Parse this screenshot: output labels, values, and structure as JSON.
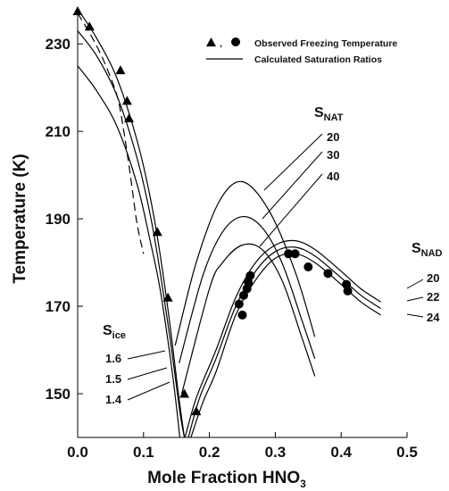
{
  "chart_data": {
    "type": "line",
    "xlabel": "Mole Fraction HNO",
    "xlabel_sub": "3",
    "ylabel": "Temperature (K)",
    "xlim": [
      0.0,
      0.5
    ],
    "ylim": [
      140,
      238
    ],
    "x_ticks": [
      "0.0",
      "0.1",
      "0.2",
      "0.3",
      "0.4",
      "0.5"
    ],
    "y_ticks": [
      "150",
      "170",
      "190",
      "210",
      "230"
    ],
    "legend": {
      "position": "top-right",
      "marker_sep": ",",
      "observed_label": "Observed Freezing Temperature",
      "calculated_label": "Calculated Saturation Ratios"
    },
    "groups": [
      {
        "main": "S",
        "sub": "ice",
        "labels": [
          "1.6",
          "1.5",
          "1.4"
        ]
      },
      {
        "main": "S",
        "sub": "NAT",
        "labels": [
          "20",
          "30",
          "40"
        ]
      },
      {
        "main": "S",
        "sub": "NAD",
        "labels": [
          "20",
          "22",
          "24"
        ]
      }
    ],
    "series": [
      {
        "group": "ice",
        "label": "1.6",
        "style": "solid",
        "points": [
          [
            0.0,
            238
          ],
          [
            0.03,
            231
          ],
          [
            0.06,
            222
          ],
          [
            0.09,
            208
          ],
          [
            0.11,
            195
          ],
          [
            0.125,
            182
          ],
          [
            0.14,
            166
          ],
          [
            0.152,
            151
          ],
          [
            0.162,
            140
          ]
        ]
      },
      {
        "group": "ice",
        "label": "1.5",
        "style": "solid",
        "points": [
          [
            0.0,
            233
          ],
          [
            0.03,
            227
          ],
          [
            0.06,
            218
          ],
          [
            0.09,
            204
          ],
          [
            0.11,
            191
          ],
          [
            0.125,
            178
          ],
          [
            0.14,
            163
          ],
          [
            0.155,
            146
          ],
          [
            0.162,
            140
          ]
        ]
      },
      {
        "group": "ice",
        "label": "1.4",
        "style": "solid",
        "points": [
          [
            0.0,
            225
          ],
          [
            0.03,
            219
          ],
          [
            0.06,
            211
          ],
          [
            0.09,
            198
          ],
          [
            0.11,
            185
          ],
          [
            0.125,
            174
          ],
          [
            0.14,
            159
          ],
          [
            0.15,
            147
          ],
          [
            0.155,
            140
          ]
        ]
      },
      {
        "group": "ice",
        "label": "",
        "style": "dashed",
        "points": [
          [
            0.0,
            237
          ],
          [
            0.02,
            232
          ],
          [
            0.04,
            226
          ],
          [
            0.06,
            218
          ],
          [
            0.07,
            210
          ],
          [
            0.08,
            200
          ],
          [
            0.09,
            189
          ],
          [
            0.1,
            182
          ]
        ]
      },
      {
        "group": "NAT",
        "label": "20",
        "style": "solid",
        "points": [
          [
            0.148,
            161
          ],
          [
            0.18,
            180
          ],
          [
            0.215,
            194
          ],
          [
            0.25,
            198.5
          ],
          [
            0.29,
            192
          ],
          [
            0.33,
            178
          ],
          [
            0.36,
            163
          ]
        ]
      },
      {
        "group": "NAT",
        "label": "30",
        "style": "solid",
        "points": [
          [
            0.154,
            157
          ],
          [
            0.19,
            177
          ],
          [
            0.22,
            187
          ],
          [
            0.25,
            190.5
          ],
          [
            0.28,
            188
          ],
          [
            0.31,
            180
          ],
          [
            0.34,
            167
          ],
          [
            0.36,
            158
          ]
        ]
      },
      {
        "group": "NAT",
        "label": "40",
        "style": "solid",
        "points": [
          [
            0.158,
            150
          ],
          [
            0.2,
            174
          ],
          [
            0.22,
            180
          ],
          [
            0.25,
            184
          ],
          [
            0.28,
            183
          ],
          [
            0.31,
            176
          ],
          [
            0.34,
            163
          ],
          [
            0.36,
            154
          ]
        ]
      },
      {
        "group": "NAD",
        "label": "20",
        "style": "solid",
        "points": [
          [
            0.163,
            140
          ],
          [
            0.18,
            149
          ],
          [
            0.21,
            160
          ],
          [
            0.24,
            172
          ],
          [
            0.27,
            180
          ],
          [
            0.3,
            184
          ],
          [
            0.33,
            185
          ],
          [
            0.36,
            183
          ],
          [
            0.4,
            178
          ],
          [
            0.43,
            174
          ],
          [
            0.46,
            171
          ]
        ]
      },
      {
        "group": "NAD",
        "label": "22",
        "style": "solid",
        "points": [
          [
            0.168,
            140
          ],
          [
            0.185,
            149
          ],
          [
            0.21,
            158
          ],
          [
            0.24,
            170
          ],
          [
            0.27,
            178
          ],
          [
            0.3,
            182.5
          ],
          [
            0.33,
            183.5
          ],
          [
            0.36,
            181.5
          ],
          [
            0.4,
            176.5
          ],
          [
            0.43,
            172.5
          ],
          [
            0.46,
            169.5
          ]
        ]
      },
      {
        "group": "NAD",
        "label": "24",
        "style": "solid",
        "points": [
          [
            0.172,
            140
          ],
          [
            0.19,
            148
          ],
          [
            0.21,
            155
          ],
          [
            0.24,
            168
          ],
          [
            0.27,
            176
          ],
          [
            0.3,
            181
          ],
          [
            0.33,
            182
          ],
          [
            0.36,
            180
          ],
          [
            0.4,
            175
          ],
          [
            0.43,
            171
          ],
          [
            0.46,
            168
          ]
        ]
      }
    ],
    "observed_triangles": [
      [
        0.0,
        237.5
      ],
      [
        0.018,
        234
      ],
      [
        0.065,
        224
      ],
      [
        0.075,
        217
      ],
      [
        0.078,
        213
      ],
      [
        0.121,
        187
      ],
      [
        0.137,
        172
      ],
      [
        0.162,
        150
      ],
      [
        0.18,
        146
      ]
    ],
    "observed_circles": [
      [
        0.245,
        170.5
      ],
      [
        0.25,
        168
      ],
      [
        0.252,
        172.5
      ],
      [
        0.257,
        174
      ],
      [
        0.259,
        175.5
      ],
      [
        0.262,
        177
      ],
      [
        0.32,
        182
      ],
      [
        0.33,
        182
      ],
      [
        0.35,
        179
      ],
      [
        0.38,
        177.5
      ],
      [
        0.408,
        175
      ],
      [
        0.41,
        173.5
      ]
    ]
  }
}
